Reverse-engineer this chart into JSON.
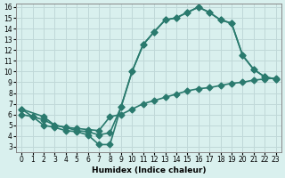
{
  "line1_x": [
    0,
    1,
    2,
    3,
    4,
    5,
    6,
    7,
    8,
    9,
    10,
    11,
    12,
    13,
    14,
    15,
    16,
    17,
    18,
    19,
    20,
    21,
    22,
    23
  ],
  "line1_y": [
    6.5,
    5.8,
    5.0,
    4.8,
    4.5,
    4.4,
    4.1,
    3.2,
    3.2,
    6.7,
    10.0,
    12.5,
    13.7,
    14.8,
    15.0,
    15.5,
    16.0,
    15.5,
    14.8,
    14.5,
    11.5,
    10.2,
    9.5,
    9.3
  ],
  "line2_x": [
    0,
    1,
    2,
    3,
    4,
    5,
    6,
    7,
    8,
    9,
    10,
    11,
    12,
    13,
    14,
    15,
    16,
    17,
    18,
    19,
    20,
    21,
    22,
    23
  ],
  "line2_y": [
    6.0,
    5.8,
    5.5,
    5.0,
    4.8,
    4.7,
    4.6,
    4.5,
    5.8,
    6.0,
    6.5,
    7.0,
    7.3,
    7.6,
    7.9,
    8.2,
    8.4,
    8.5,
    8.7,
    8.9,
    9.0,
    9.2,
    9.3,
    9.4
  ],
  "line3_x": [
    0,
    2,
    3,
    4,
    5,
    6,
    7,
    8,
    9,
    10,
    11,
    12,
    13,
    14,
    15,
    16,
    17,
    18,
    19,
    20,
    21,
    22,
    23
  ],
  "line3_y": [
    6.5,
    5.8,
    5.0,
    4.8,
    4.5,
    4.4,
    4.1,
    4.3,
    6.7,
    10.0,
    12.5,
    13.7,
    14.8,
    15.0,
    15.5,
    16.0,
    15.5,
    14.8,
    14.5,
    11.5,
    10.2,
    9.5,
    9.3
  ],
  "line_color": "#2a7a6e",
  "bg_color": "#d9f0ee",
  "grid_color": "#c0d8d8",
  "xlabel": "Humidex (Indice chaleur)",
  "ylim": [
    3,
    16
  ],
  "xlim": [
    0,
    23
  ],
  "yticks": [
    3,
    4,
    5,
    6,
    7,
    8,
    9,
    10,
    11,
    12,
    13,
    14,
    15,
    16
  ],
  "xticks": [
    0,
    1,
    2,
    3,
    4,
    5,
    6,
    7,
    8,
    9,
    10,
    11,
    12,
    13,
    14,
    15,
    16,
    17,
    18,
    19,
    20,
    21,
    22,
    23
  ],
  "marker": "D",
  "marker_size": 3.5,
  "line_width": 1.2
}
